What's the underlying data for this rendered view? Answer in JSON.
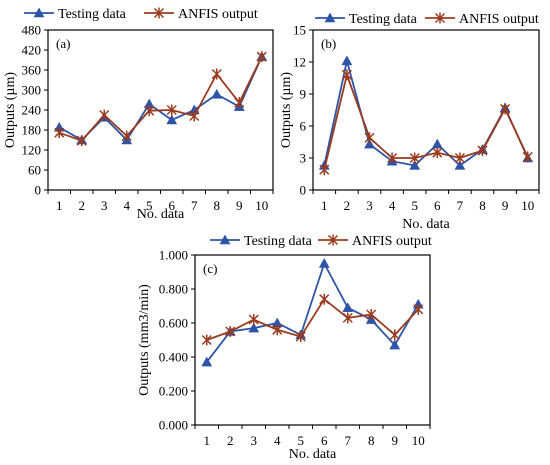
{
  "legend": {
    "testing_label": "Testing data",
    "anfis_label": "ANFIS output",
    "testing_color": "#2e54a7",
    "anfis_color": "#9b3b1e"
  },
  "chart_data": [
    {
      "type": "line",
      "panel_label": "(a)",
      "xlabel": "No. data",
      "ylabel": "Outputs (µm)",
      "x": [
        1,
        2,
        3,
        4,
        5,
        6,
        7,
        8,
        9,
        10
      ],
      "ylim": [
        0,
        480
      ],
      "yticks": [
        0,
        60,
        120,
        180,
        240,
        300,
        360,
        420,
        480
      ],
      "ytick_labels": [
        "0",
        "60",
        "120",
        "180",
        "240",
        "300",
        "360",
        "420",
        "480"
      ],
      "legend_placement": "top",
      "grid": false,
      "series": [
        {
          "name": "Testing data",
          "marker": "triangle",
          "values": [
            188,
            150,
            218,
            150,
            258,
            210,
            240,
            287,
            250,
            400
          ]
        },
        {
          "name": "ANFIS output",
          "marker": "cross",
          "values": [
            172,
            148,
            225,
            162,
            238,
            240,
            222,
            348,
            262,
            400
          ]
        }
      ]
    },
    {
      "type": "line",
      "panel_label": "(b)",
      "xlabel": "No. data",
      "ylabel": "Outputs (µm)",
      "x": [
        1,
        2,
        3,
        4,
        5,
        6,
        7,
        8,
        9,
        10
      ],
      "ylim": [
        0,
        15
      ],
      "yticks": [
        0,
        3,
        6,
        9,
        12,
        15
      ],
      "ytick_labels": [
        "0",
        "3",
        "6",
        "9",
        "12",
        "15"
      ],
      "legend_placement": "top",
      "grid": false,
      "series": [
        {
          "name": "Testing data",
          "marker": "triangle",
          "values": [
            2.3,
            12.1,
            4.3,
            2.7,
            2.3,
            4.3,
            2.3,
            3.8,
            7.7,
            3.0
          ]
        },
        {
          "name": "ANFIS output",
          "marker": "cross",
          "values": [
            1.9,
            10.8,
            4.9,
            3.0,
            3.0,
            3.5,
            3.0,
            3.7,
            7.6,
            3.1
          ]
        }
      ]
    },
    {
      "type": "line",
      "panel_label": "(c)",
      "xlabel": "No. data",
      "ylabel": "Outputs (mm3/min)",
      "x": [
        1,
        2,
        3,
        4,
        5,
        6,
        7,
        8,
        9,
        10
      ],
      "ylim": [
        0,
        1
      ],
      "yticks": [
        0,
        0.2,
        0.4,
        0.6,
        0.8,
        1.0
      ],
      "ytick_labels": [
        "0.000",
        "0.200",
        "0.400",
        "0.600",
        "0.800",
        "1.000"
      ],
      "legend_placement": "top",
      "grid": false,
      "series": [
        {
          "name": "Testing data",
          "marker": "triangle",
          "values": [
            0.37,
            0.55,
            0.57,
            0.6,
            0.53,
            0.95,
            0.69,
            0.62,
            0.47,
            0.71
          ]
        },
        {
          "name": "ANFIS output",
          "marker": "cross",
          "values": [
            0.5,
            0.55,
            0.62,
            0.56,
            0.52,
            0.74,
            0.63,
            0.65,
            0.53,
            0.68
          ]
        }
      ]
    }
  ]
}
